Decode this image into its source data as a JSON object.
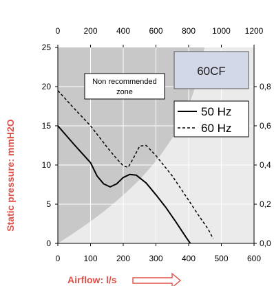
{
  "chart_data": {
    "type": "line",
    "model_label": "60CF",
    "zone_label": [
      "Non recommended",
      "zone"
    ],
    "xlabel": "Airflow: l/s",
    "ylabel": "Static pressure: mmH2O",
    "x_ticks": [
      "0",
      "100",
      "200",
      "300",
      "400",
      "500",
      "600"
    ],
    "y_ticks": [
      "0",
      "5",
      "10",
      "15",
      "20",
      "25"
    ],
    "top_ticks": [
      "0",
      "200",
      "400",
      "600",
      "800",
      "1000",
      "1200"
    ],
    "right_ticks": [
      "0,0",
      "0,2",
      "0,4",
      "0,6",
      "0,8"
    ],
    "xlim": [
      0,
      600
    ],
    "ylim": [
      0,
      25
    ],
    "grid": true,
    "legend_position": "right",
    "series": [
      {
        "name": "50 Hz",
        "style": "solid",
        "x": [
          0,
          50,
          100,
          120,
          140,
          160,
          180,
          200,
          220,
          240,
          270,
          300,
          330,
          360,
          390,
          405
        ],
        "y": [
          15,
          12.6,
          10.3,
          8.6,
          7.6,
          7.2,
          7.6,
          8.4,
          8.8,
          8.7,
          7.7,
          6.2,
          4.6,
          2.8,
          0.9,
          0
        ]
      },
      {
        "name": "60 Hz",
        "style": "dashed",
        "x": [
          0,
          50,
          100,
          150,
          180,
          200,
          215,
          230,
          250,
          270,
          300,
          350,
          400,
          430,
          460,
          475
        ],
        "y": [
          19.5,
          17.2,
          15,
          12.3,
          10.8,
          9.9,
          9.7,
          10.8,
          12.4,
          12.5,
          11.2,
          8.6,
          5.5,
          3.6,
          1.8,
          0.6
        ]
      }
    ]
  }
}
